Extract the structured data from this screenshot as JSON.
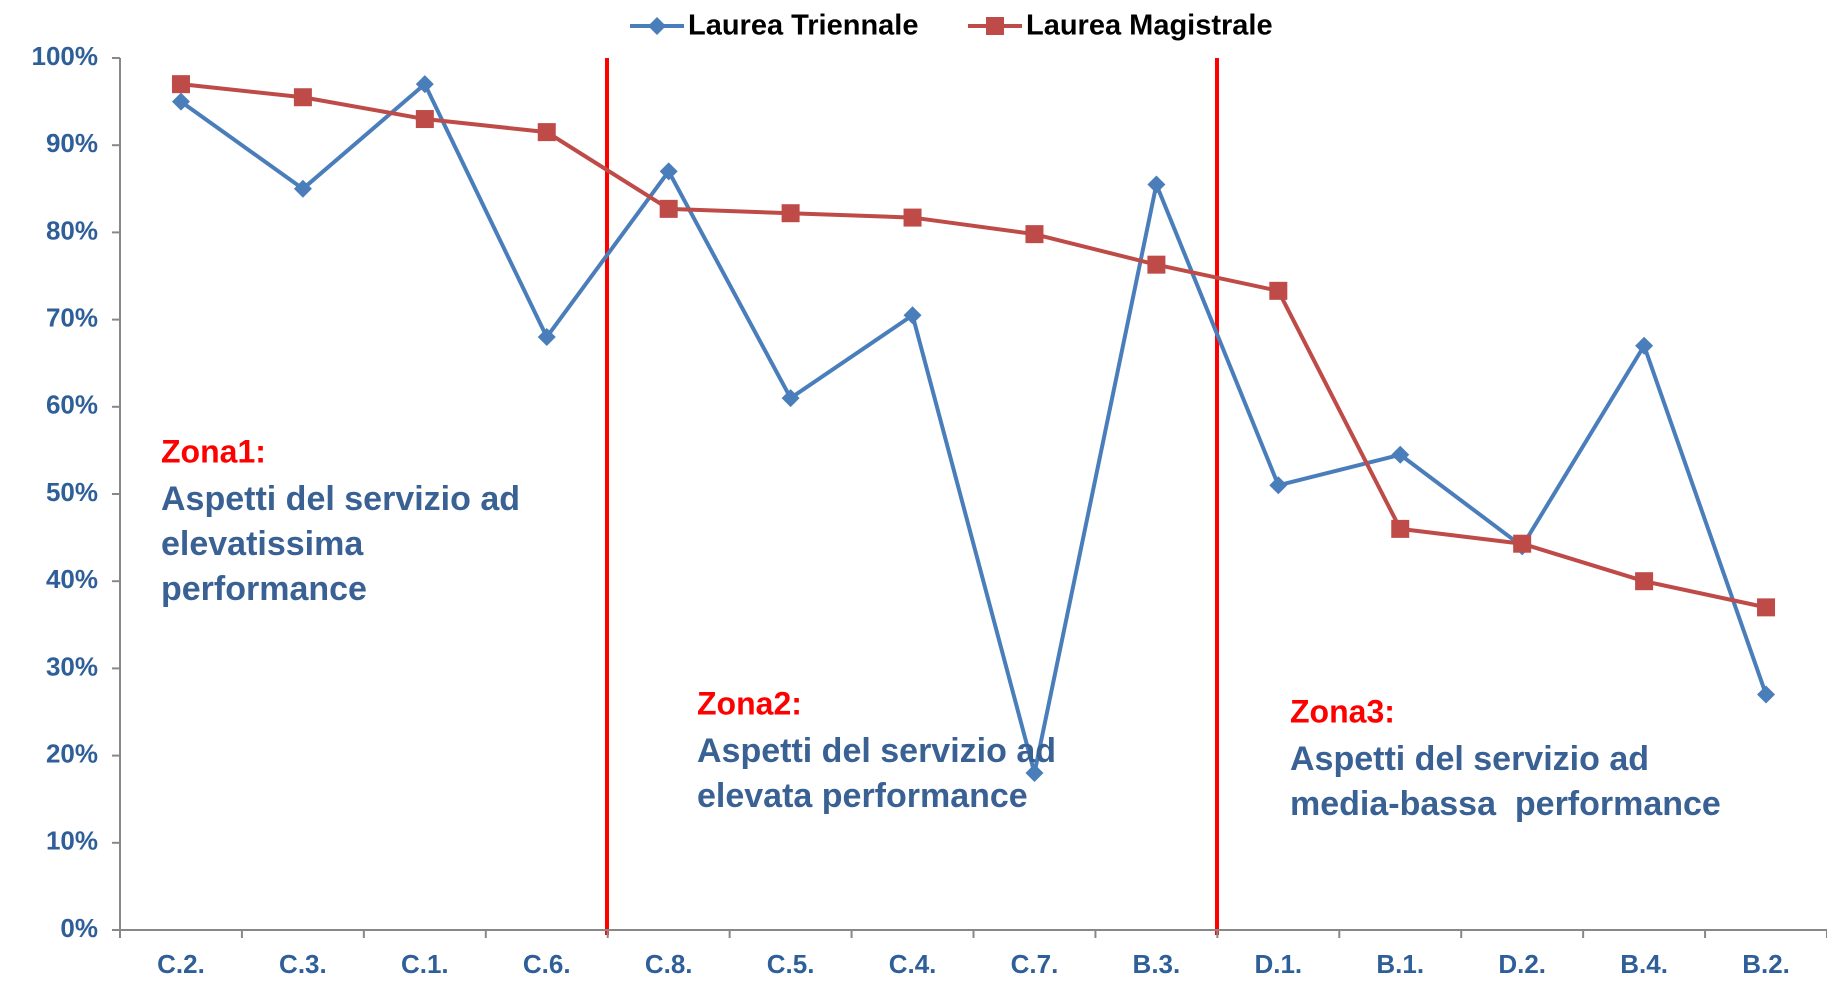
{
  "chart_data": {
    "type": "line",
    "categories": [
      "C.2.",
      "C.3.",
      "C.1.",
      "C.6.",
      "C.8.",
      "C.5.",
      "C.4.",
      "C.7.",
      "B.3.",
      "D.1.",
      "B.1.",
      "D.2.",
      "B.4.",
      "B.2."
    ],
    "series": [
      {
        "name": "Laurea Triennale",
        "color": "#4a7ebb",
        "marker": "diamond",
        "values": [
          95,
          85,
          97,
          68,
          87,
          61,
          70.5,
          18,
          85.5,
          51,
          54.5,
          44,
          67,
          27
        ]
      },
      {
        "name": "Laurea Magistrale",
        "color": "#be4b48",
        "marker": "square",
        "values": [
          97,
          95.5,
          93,
          91.5,
          82.7,
          82.2,
          81.7,
          79.8,
          76.3,
          73.3,
          46,
          44.3,
          40,
          37
        ]
      }
    ],
    "ylim": [
      0,
      100
    ],
    "yticks": [
      {
        "value": 0,
        "label": "0%"
      },
      {
        "value": 10,
        "label": "10%"
      },
      {
        "value": 20,
        "label": "20%"
      },
      {
        "value": 30,
        "label": "30%"
      },
      {
        "value": 40,
        "label": "40%"
      },
      {
        "value": 50,
        "label": "50%"
      },
      {
        "value": 60,
        "label": "60%"
      },
      {
        "value": 70,
        "label": "70%"
      },
      {
        "value": 80,
        "label": "80%"
      },
      {
        "value": 90,
        "label": "90%"
      },
      {
        "value": 100,
        "label": "100%"
      }
    ],
    "grid": false,
    "legend": "top",
    "annotations": [
      {
        "title": "Zona1:",
        "lines": [
          "Aspetti del servizio ad",
          "elevatissima",
          "performance"
        ]
      },
      {
        "title": "Zona2:",
        "lines": [
          "Aspetti del servizio ad",
          "elevata performance"
        ]
      },
      {
        "title": "Zona3:",
        "lines": [
          "Aspetti del servizio ad",
          "media-bassa  performance"
        ]
      }
    ]
  }
}
